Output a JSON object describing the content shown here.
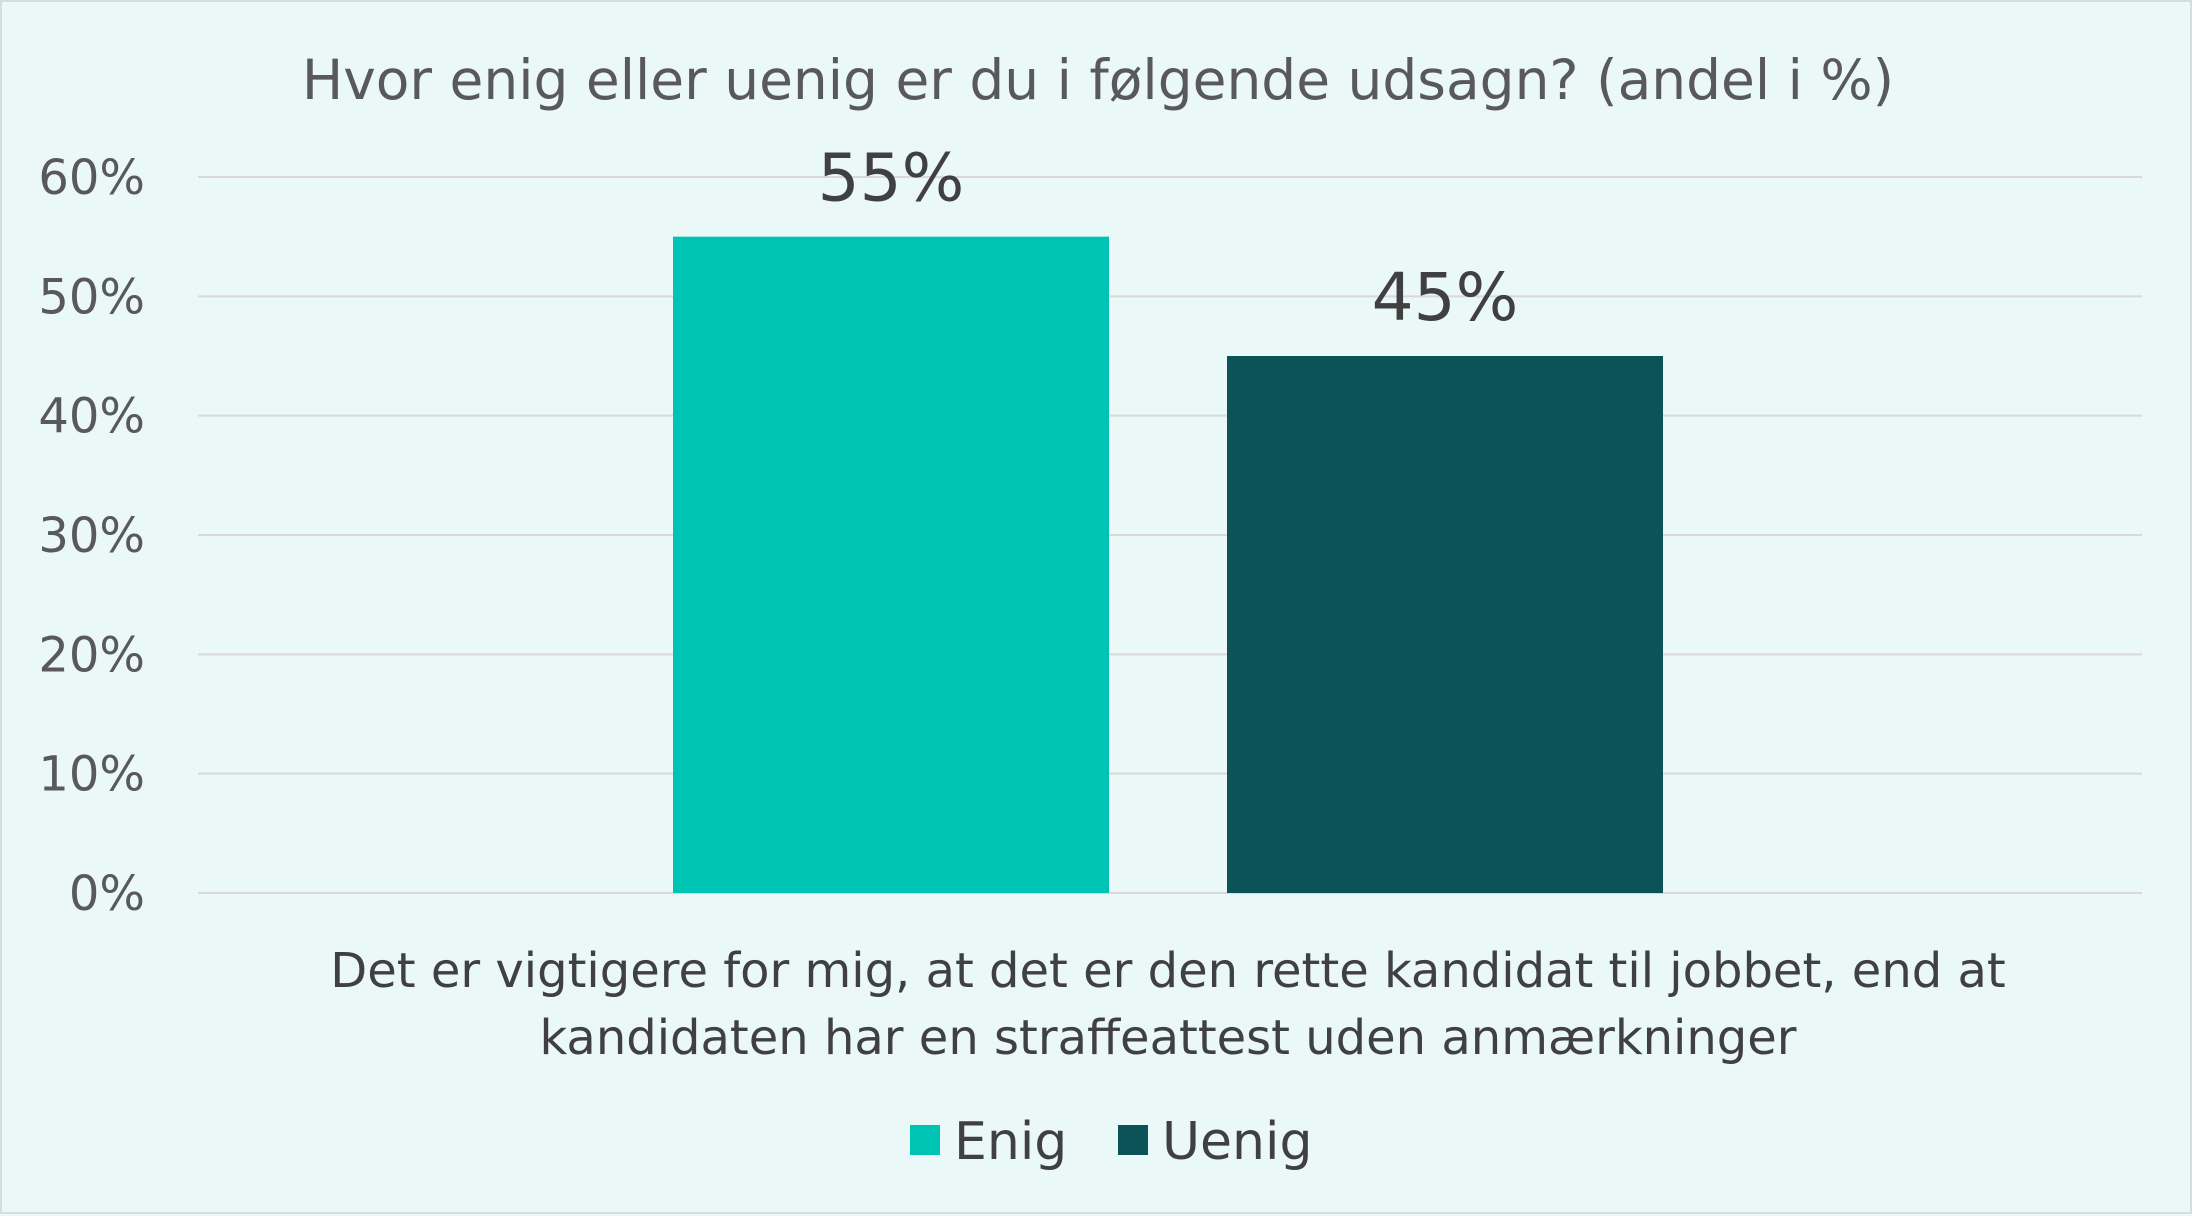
{
  "chart_data": {
    "type": "bar",
    "title": "Hvor enig eller uenig er du i følgende udsagn? (andel i %)",
    "categories": [
      "Det er vigtigere for mig, at det er den rette kandidat til jobbet, end at kandidaten har en straffeattest uden anmærkninger"
    ],
    "category_lines": [
      "Det er vigtigere for mig, at det er den rette kandidat til jobbet, end at",
      "kandidaten har en straffeattest uden anmærkninger"
    ],
    "series": [
      {
        "name": "Enig",
        "values": [
          55
        ],
        "color": "#00c4b3",
        "label": "55%"
      },
      {
        "name": "Uenig",
        "values": [
          45
        ],
        "color": "#0c5259",
        "label": "45%"
      }
    ],
    "ylim": [
      0,
      60
    ],
    "yticks": [
      0,
      10,
      20,
      30,
      40,
      50,
      60
    ],
    "ytick_labels": [
      "0%",
      "10%",
      "20%",
      "30%",
      "40%",
      "50%",
      "60%"
    ],
    "xlabel": "",
    "ylabel": "",
    "grid": true,
    "legend_position": "bottom-center"
  }
}
